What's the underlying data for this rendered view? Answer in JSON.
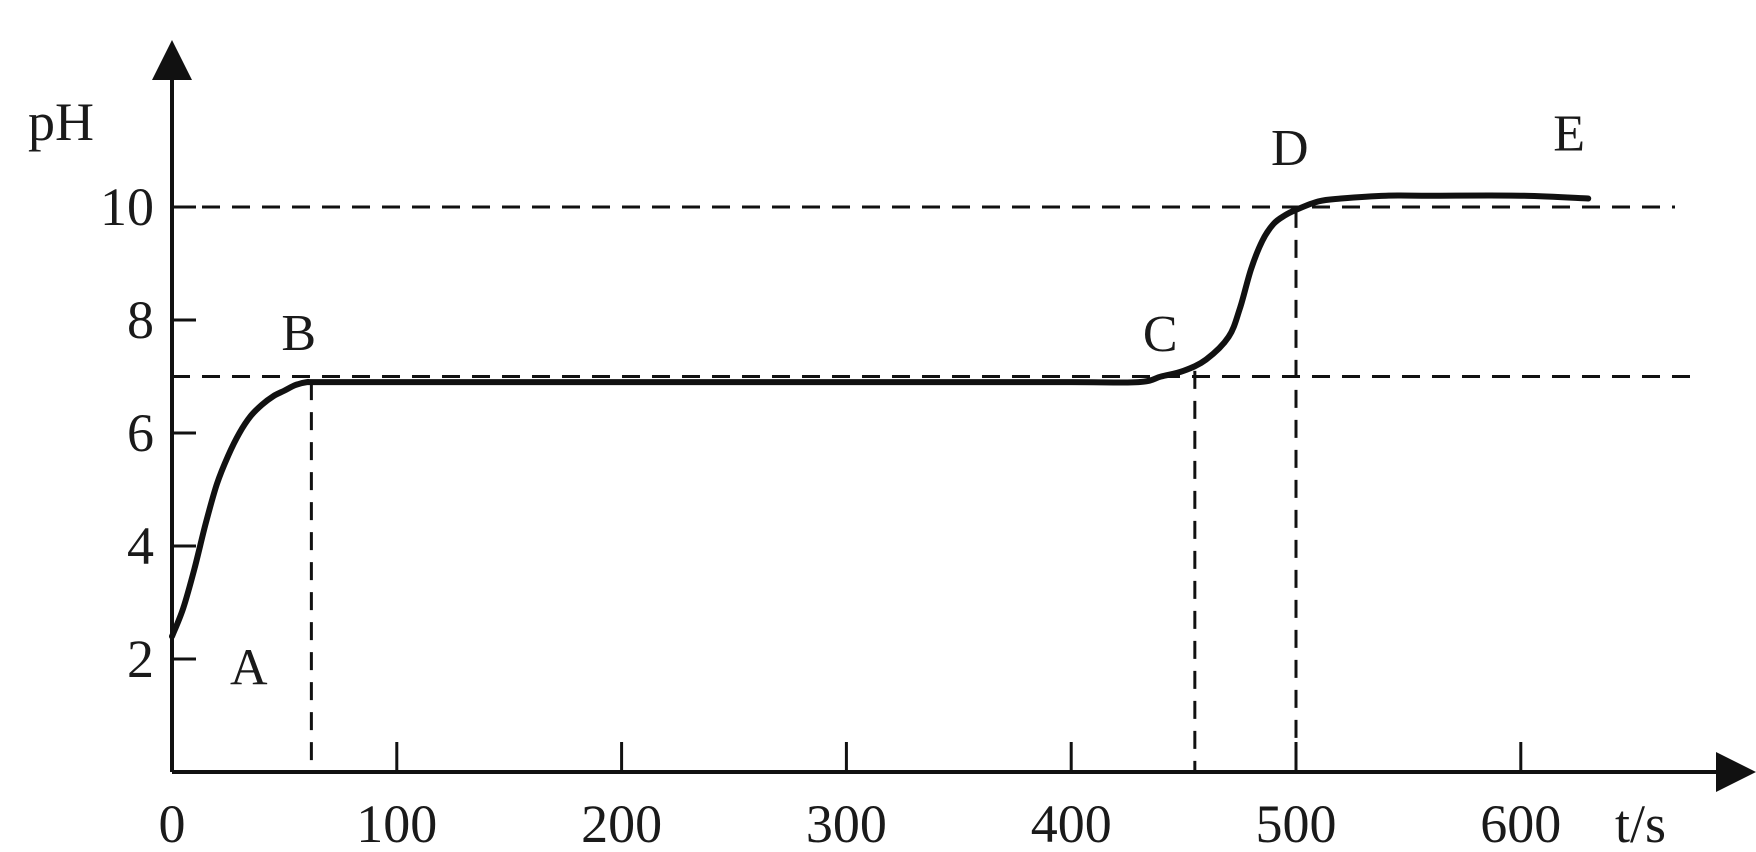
{
  "chart_data": {
    "type": "line",
    "xlabel": "t/s",
    "ylabel": "pH",
    "x_ticks": [
      0,
      100,
      200,
      300,
      400,
      500,
      600
    ],
    "y_ticks": [
      2,
      4,
      6,
      8,
      10
    ],
    "xlim": [
      0,
      700
    ],
    "ylim": [
      0,
      11.5
    ],
    "series": [
      {
        "x": [
          0,
          5,
          10,
          15,
          20,
          25,
          30,
          35,
          40,
          45,
          50,
          55,
          60,
          65,
          100,
          200,
          300,
          400,
          430,
          440,
          450,
          460,
          470,
          475,
          480,
          485,
          490,
          495,
          500,
          510,
          520,
          540,
          560,
          600,
          630
        ],
        "y": [
          2.4,
          2.9,
          3.6,
          4.4,
          5.1,
          5.6,
          6.0,
          6.3,
          6.5,
          6.65,
          6.75,
          6.85,
          6.9,
          6.9,
          6.9,
          6.9,
          6.9,
          6.9,
          6.9,
          7.0,
          7.1,
          7.3,
          7.7,
          8.2,
          8.9,
          9.4,
          9.7,
          9.85,
          9.95,
          10.1,
          10.15,
          10.2,
          10.2,
          10.2,
          10.15
        ]
      }
    ],
    "points": [
      {
        "label": "A",
        "x": 0,
        "y": 2.4
      },
      {
        "label": "B",
        "x": 62,
        "y": 6.9
      },
      {
        "label": "C",
        "x": 455,
        "y": 7.1
      },
      {
        "label": "D",
        "x": 500,
        "y": 9.95
      },
      {
        "label": "E",
        "x": 630,
        "y": 10.15
      }
    ],
    "reference_lines": {
      "horizontal": [
        10,
        7
      ],
      "vertical": [
        62,
        455,
        500
      ]
    },
    "grid": false,
    "colors": {
      "line": "#111111",
      "text": "#1a1a1a"
    }
  }
}
